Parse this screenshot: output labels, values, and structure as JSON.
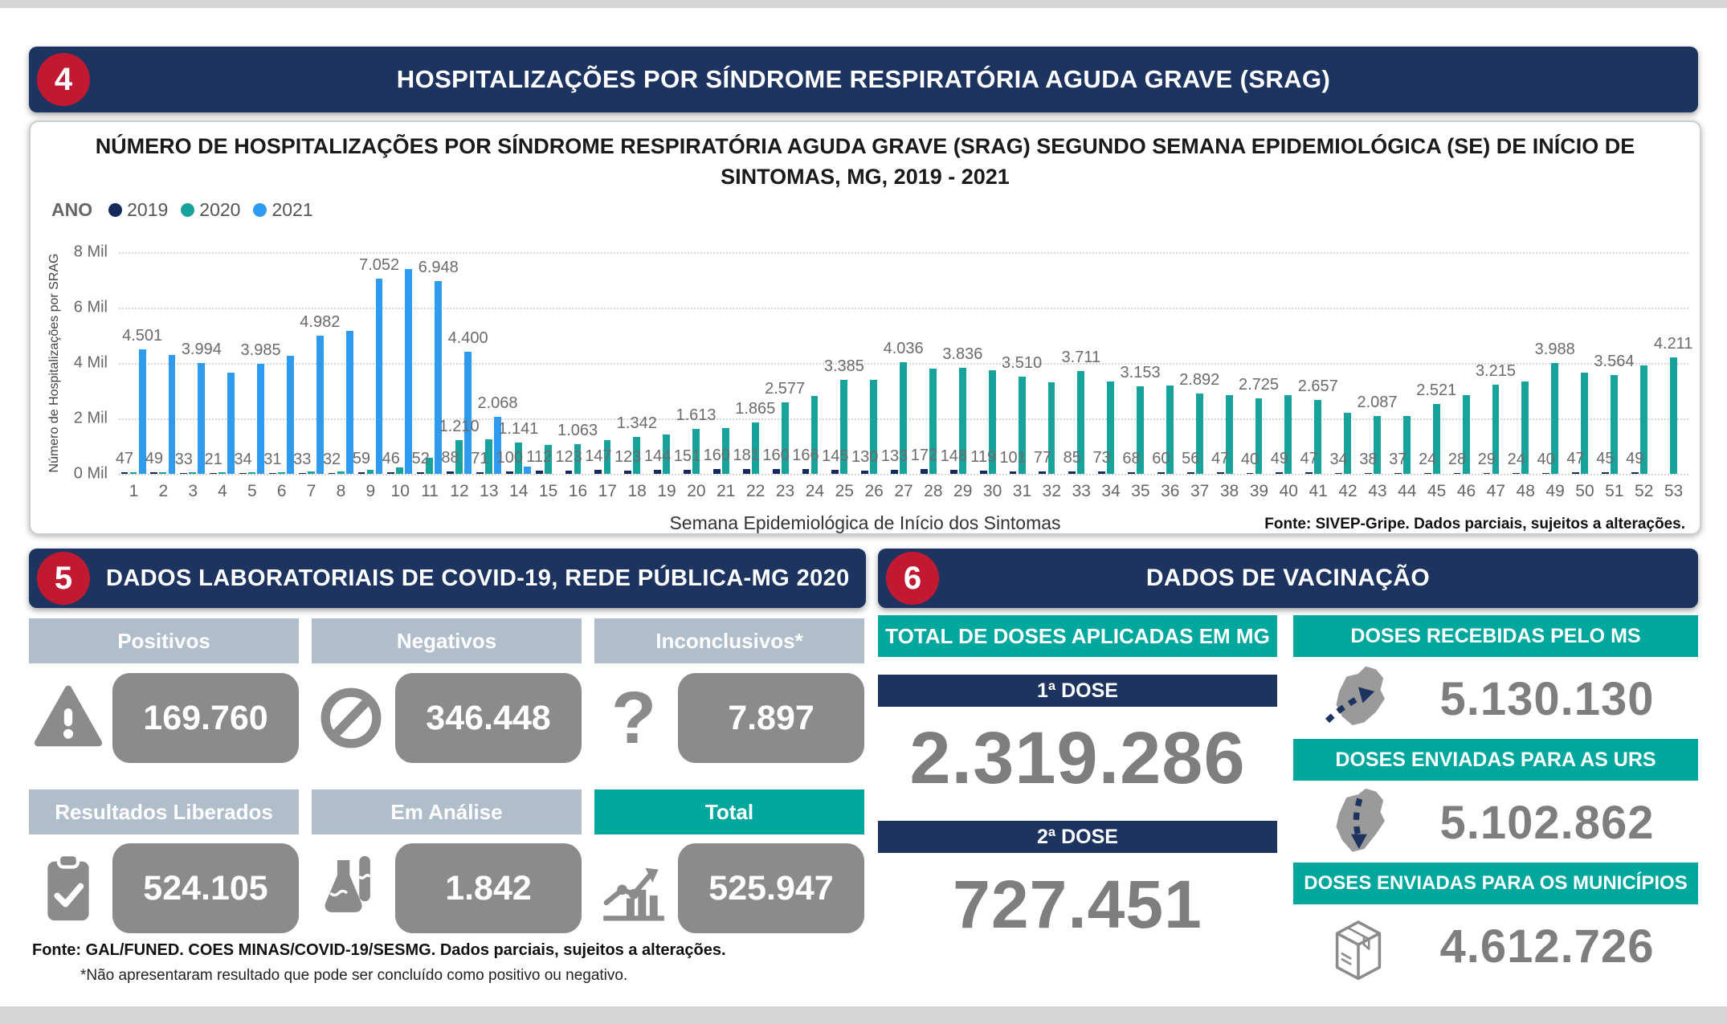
{
  "colors": {
    "navy_header": "#1D3461",
    "red_badge": "#C01931",
    "teal_header": "#00A79D",
    "bar_2019": "#16295C",
    "bar_2020": "#17A29B",
    "bar_2021": "#2E9BF0",
    "gray_box": "#8B8B8B",
    "steel_header": "#B0BECB",
    "big_number_gray": "#7E7E7E"
  },
  "srag": {
    "badge": "4",
    "title": "HOSPITALIZAÇÕES POR SÍNDROME RESPIRATÓRIA AGUDA GRAVE (SRAG)",
    "fonte": "Fonte: SIVEP-Gripe. Dados parciais, sujeitos a alterações."
  },
  "chart_data": {
    "type": "bar",
    "title_line1": "NÚMERO DE HOSPITALIZAÇÕES POR SÍNDROME RESPIRATÓRIA AGUDA GRAVE (SRAG) SEGUNDO SEMANA EPIDEMIOLÓGICA (SE) DE INÍCIO DE",
    "title_line2": "SINTOMAS, MG, 2019 - 2021",
    "legend_title": "ANO",
    "legend_position": "top-left",
    "grid": "horizontal-dotted",
    "xlabel": "Semana Epidemiológica de Início dos Sintomas",
    "ylabel": "Número de Hospitalizações por SRAG",
    "ylim": [
      0,
      8000
    ],
    "yticks": [
      "8 Mil",
      "6 Mil",
      "4 Mil",
      "2 Mil",
      "0 Mil"
    ],
    "categories": [
      1,
      2,
      3,
      4,
      5,
      6,
      7,
      8,
      9,
      10,
      11,
      12,
      13,
      14,
      15,
      16,
      17,
      18,
      19,
      20,
      21,
      22,
      23,
      24,
      25,
      26,
      27,
      28,
      29,
      30,
      31,
      32,
      33,
      34,
      35,
      36,
      37,
      38,
      39,
      40,
      41,
      42,
      43,
      44,
      45,
      46,
      47,
      48,
      49,
      50,
      51,
      52,
      53
    ],
    "series": [
      {
        "name": "2019",
        "color": "#16295C",
        "values": [
          47,
          49,
          33,
          21,
          34,
          31,
          33,
          32,
          59,
          46,
          52,
          88,
          71,
          100,
          112,
          123,
          147,
          123,
          144,
          151,
          160,
          181,
          160,
          166,
          145,
          130,
          133,
          172,
          148,
          119,
          101,
          77,
          85,
          73,
          68,
          60,
          56,
          47,
          40,
          49,
          47,
          34,
          38,
          37,
          24,
          28,
          29,
          24,
          40,
          47,
          45,
          49,
          null
        ],
        "labels": [
          "47",
          "49",
          "33",
          "21",
          "34",
          "31",
          "33",
          "32",
          "59",
          "46",
          "52",
          "88",
          "71",
          "100",
          "112",
          "123",
          "147",
          "123",
          "144",
          "151",
          "160",
          "181",
          "160",
          "166",
          "145",
          "130",
          "133",
          "172",
          "148",
          "119",
          "101",
          "77",
          "85",
          "73",
          "68",
          "60",
          "56",
          "47",
          "40",
          "49",
          "47",
          "34",
          "38",
          "37",
          "24",
          "28",
          "29",
          "24",
          "40",
          "47",
          "45",
          "49",
          null
        ]
      },
      {
        "name": "2020",
        "color": "#17A29B",
        "values": [
          60,
          60,
          65,
          60,
          70,
          70,
          80,
          90,
          150,
          230,
          570,
          1210,
          1240,
          1141,
          1030,
          1063,
          1210,
          1342,
          1430,
          1613,
          1660,
          1865,
          2577,
          2800,
          3385,
          3400,
          4036,
          3800,
          3836,
          3750,
          3510,
          3300,
          3711,
          3340,
          3153,
          3200,
          2892,
          2830,
          2725,
          2850,
          2657,
          2200,
          2087,
          2100,
          2521,
          2830,
          3215,
          3340,
          3988,
          3660,
          3564,
          3900,
          4211
        ],
        "labels": [
          null,
          null,
          null,
          null,
          null,
          null,
          null,
          null,
          null,
          null,
          null,
          "1.210",
          null,
          "1.141",
          null,
          "1.063",
          null,
          "1.342",
          null,
          "1.613",
          null,
          "1.865",
          "2.577",
          null,
          "3.385",
          null,
          "4.036",
          null,
          "3.836",
          null,
          "3.510",
          null,
          "3.711",
          null,
          "3.153",
          null,
          "2.892",
          null,
          "2.725",
          null,
          "2.657",
          null,
          "2.087",
          null,
          "2.521",
          null,
          "3.215",
          null,
          "3.988",
          null,
          "3.564",
          null,
          "4.211"
        ]
      },
      {
        "name": "2021",
        "color": "#2E9BF0",
        "values": [
          4501,
          4300,
          3994,
          3650,
          3985,
          4250,
          4982,
          5150,
          7052,
          7400,
          6948,
          4400,
          2068,
          260,
          null,
          null,
          null,
          null,
          null,
          null,
          null,
          null,
          null,
          null,
          null,
          null,
          null,
          null,
          null,
          null,
          null,
          null,
          null,
          null,
          null,
          null,
          null,
          null,
          null,
          null,
          null,
          null,
          null,
          null,
          null,
          null,
          null,
          null,
          null,
          null,
          null,
          null,
          null
        ],
        "labels": [
          "4.501",
          null,
          "3.994",
          null,
          "3.985",
          null,
          "4.982",
          null,
          "7.052",
          null,
          "6.948",
          "4.400",
          "2.068",
          null,
          null,
          null,
          null,
          null,
          null,
          null,
          null,
          null,
          null,
          null,
          null,
          null,
          null,
          null,
          null,
          null,
          null,
          null,
          null,
          null,
          null,
          null,
          null,
          null,
          null,
          null,
          null,
          null,
          null,
          null,
          null,
          null,
          null,
          null,
          null,
          null,
          null,
          null,
          null
        ]
      }
    ]
  },
  "lab": {
    "badge": "5",
    "title": "DADOS LABORATORIAIS DE COVID-19, REDE PÚBLICA-MG 2020",
    "cards": [
      {
        "label": "Positivos",
        "value": "169.760",
        "icon": "warning-icon"
      },
      {
        "label": "Negativos",
        "value": "346.448",
        "icon": "no-entry-icon"
      },
      {
        "label": "Inconclusivos*",
        "value": "7.897",
        "icon": "question-icon"
      },
      {
        "label": "Resultados Liberados",
        "value": "524.105",
        "icon": "clipboard-check-icon"
      },
      {
        "label": "Em Análise",
        "value": "1.842",
        "icon": "lab-flask-icon"
      },
      {
        "label": "Total",
        "value": "525.947",
        "icon": "chart-up-icon"
      }
    ],
    "fonte": "Fonte: GAL/FUNED. COES MINAS/COVID-19/SESMG. Dados parciais, sujeitos a alterações.",
    "note": "*Não apresentaram resultado que pode ser concluído como positivo ou negativo."
  },
  "vac": {
    "badge": "6",
    "title": "DADOS DE VACINAÇÃO",
    "left": {
      "total_header": "TOTAL DE DOSES APLICADAS EM MG",
      "dose1_label": "1ª DOSE",
      "dose1_value": "2.319.286",
      "dose2_label": "2ª DOSE",
      "dose2_value": "727.451"
    },
    "right": [
      {
        "label": "DOSES RECEBIDAS PELO MS",
        "value": "5.130.130",
        "icon": "map-arrow-in-icon"
      },
      {
        "label": "DOSES ENVIADAS PARA AS URS",
        "value": "5.102.862",
        "icon": "map-arrow-down-icon"
      },
      {
        "label": "DOSES ENVIADAS PARA OS MUNICÍPIOS",
        "value": "4.612.726",
        "icon": "package-box-icon"
      }
    ]
  }
}
